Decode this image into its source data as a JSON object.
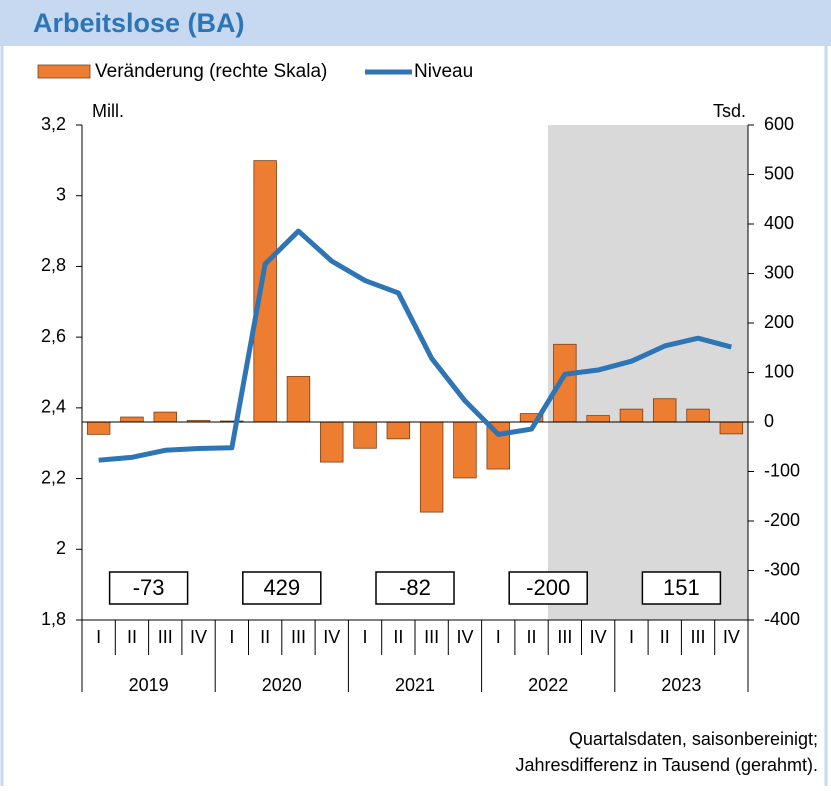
{
  "chart_data": {
    "type": "bar_line",
    "title": "Arbeitslose (BA)",
    "ylabel": "Mill.",
    "y2label": "Tsd.",
    "categories": [
      "I",
      "II",
      "III",
      "IV",
      "I",
      "II",
      "III",
      "IV",
      "I",
      "II",
      "III",
      "IV",
      "I",
      "II",
      "III",
      "IV",
      "I",
      "II",
      "III",
      "IV"
    ],
    "groups": [
      "2019",
      "2020",
      "2021",
      "2022",
      "2023"
    ],
    "series": [
      {
        "name": "Veränderung (rechte Skala)",
        "type": "bar",
        "axis": "y2",
        "color": "#ed7d31",
        "values": [
          -25,
          10,
          20,
          3,
          2,
          528,
          92,
          -81,
          -53,
          -34,
          -182,
          -113,
          -95,
          17,
          157,
          13,
          26,
          47,
          26,
          -24
        ]
      },
      {
        "name": "Niveau",
        "type": "line",
        "axis": "y",
        "color": "#2e75b6",
        "values": [
          2.252,
          2.26,
          2.28,
          2.285,
          2.287,
          2.807,
          2.9,
          2.815,
          2.76,
          2.725,
          2.54,
          2.42,
          2.325,
          2.34,
          2.495,
          2.507,
          2.532,
          2.575,
          2.597,
          2.572
        ]
      }
    ],
    "annual_differences": [
      -73,
      429,
      -82,
      -200,
      151
    ],
    "ylim": [
      1.8,
      3.2
    ],
    "yticks": [
      {
        "value": 1.8,
        "label": "1,8"
      },
      2,
      {
        "value": 2.2,
        "label": "2,2"
      },
      {
        "value": 2.4,
        "label": "2,4"
      },
      {
        "value": 2.6,
        "label": "2,6"
      },
      {
        "value": 2.8,
        "label": "2,8"
      },
      3,
      {
        "value": 3.2,
        "label": "3,2"
      }
    ],
    "y2lim": [
      -400,
      600
    ],
    "y2ticks": [
      -400,
      -300,
      -200,
      -100,
      0,
      100,
      200,
      300,
      400,
      500,
      600
    ],
    "notes": [
      "Quartalsdaten, saisonbereinigt;",
      "Jahresdifferenz in Tausend (gerahmt)."
    ]
  }
}
